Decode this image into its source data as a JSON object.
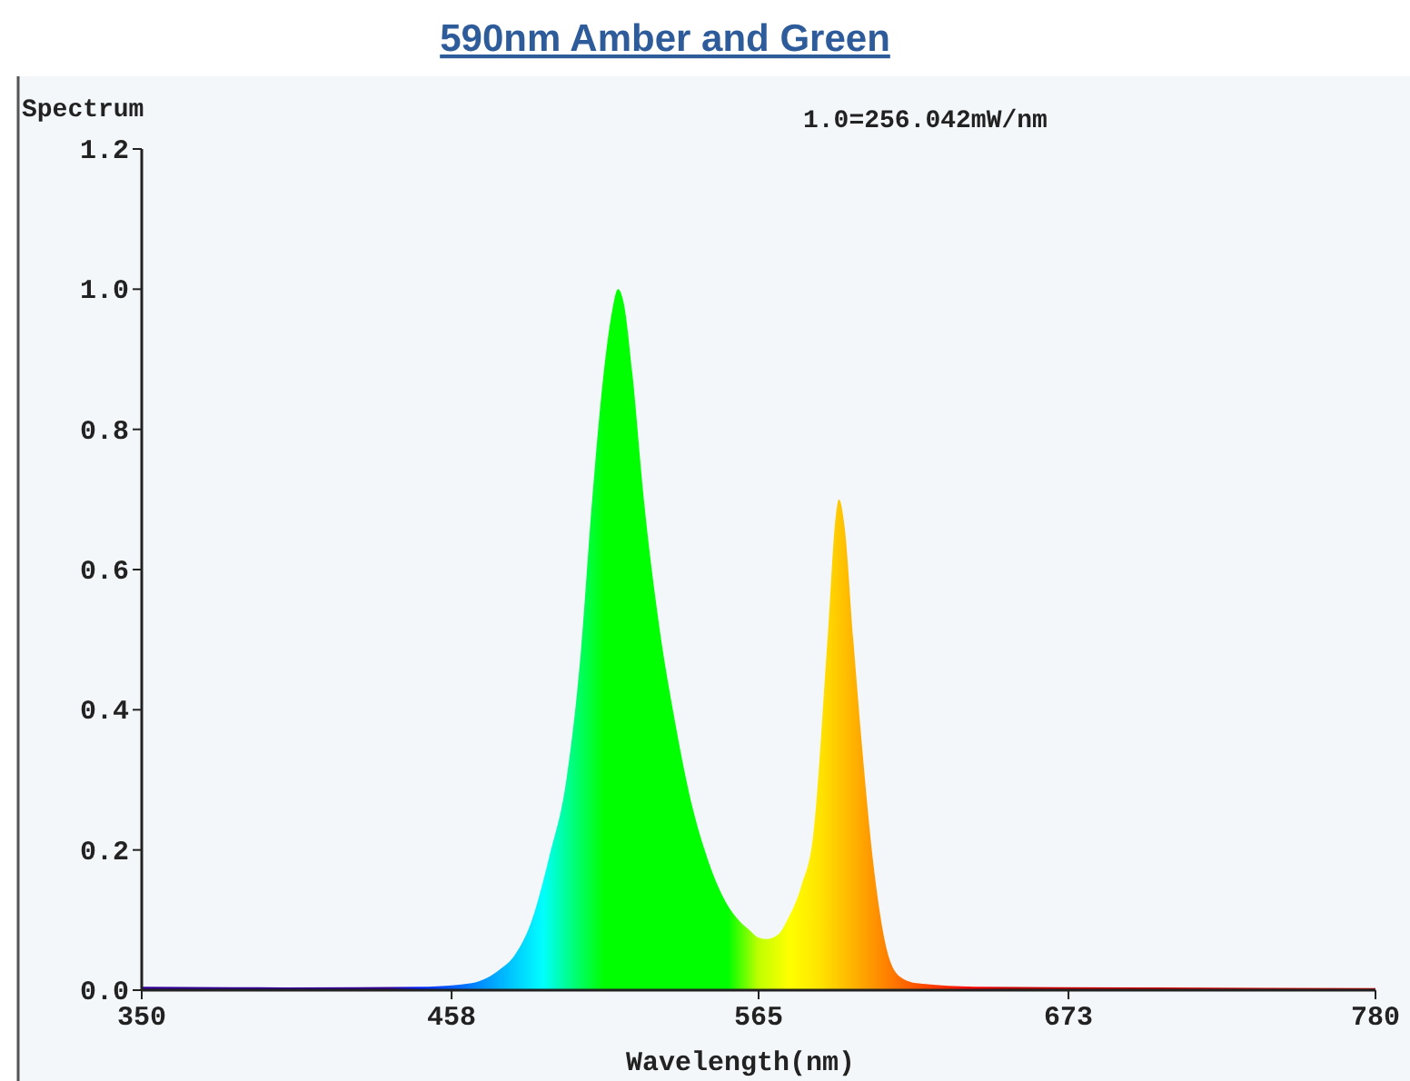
{
  "chart_data": {
    "type": "area",
    "title": "590nm Amber and Green",
    "xlabel": "Wavelength(nm)",
    "ylabel": "Spectrum",
    "annotations": [
      "1.0=256.042mW/nm"
    ],
    "series": [
      {
        "x": [
          350,
          400,
          450,
          465,
          475,
          480,
          486,
          492,
          498,
          503,
          507,
          511,
          514,
          516,
          518,
          521,
          525,
          530,
          536,
          542,
          547,
          553,
          558,
          562,
          565,
          568,
          572,
          575,
          580,
          584,
          589,
          592,
          593,
          595,
          598,
          601,
          605,
          609,
          614,
          620,
          640,
          700,
          780
        ],
        "values": [
          0.005,
          0.004,
          0.005,
          0.01,
          0.03,
          0.05,
          0.1,
          0.19,
          0.3,
          0.48,
          0.7,
          0.88,
          0.97,
          1.0,
          0.98,
          0.88,
          0.7,
          0.53,
          0.38,
          0.26,
          0.19,
          0.13,
          0.1,
          0.085,
          0.075,
          0.073,
          0.08,
          0.1,
          0.15,
          0.22,
          0.5,
          0.68,
          0.7,
          0.66,
          0.5,
          0.35,
          0.18,
          0.07,
          0.02,
          0.01,
          0.005,
          0.004,
          0.003
        ]
      }
    ],
    "xlim": [
      350,
      780
    ],
    "xticks": [
      350,
      458,
      565,
      673,
      780
    ],
    "ylim": [
      0,
      1.2
    ],
    "yticks": [
      {
        "value": 0,
        "label": "0.0"
      },
      {
        "value": 0.2,
        "label": "0.2"
      },
      {
        "value": 0.4,
        "label": "0.4"
      },
      {
        "value": 0.6,
        "label": "0.6"
      },
      {
        "value": 0.8,
        "label": "0.8"
      },
      {
        "value": 1,
        "label": "1.0"
      },
      {
        "value": 1.2,
        "label": "1.2"
      }
    ]
  }
}
